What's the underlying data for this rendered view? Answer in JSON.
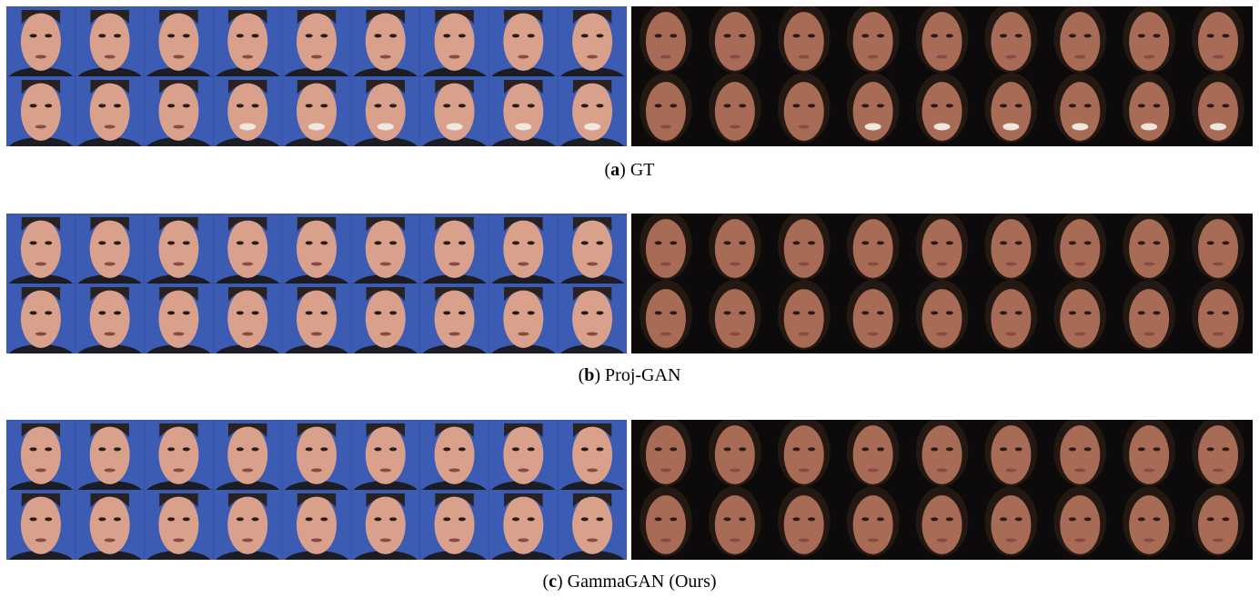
{
  "figure": {
    "panels": [
      {
        "caption": {
          "prefix": "(",
          "label": "a",
          "suffix": ") GT"
        }
      },
      {
        "caption": {
          "prefix": "(",
          "label": "b",
          "suffix": ") Proj-GAN"
        }
      },
      {
        "caption": {
          "prefix": "(",
          "label": "c",
          "suffix": ") GammaGAN (Ours)"
        }
      }
    ]
  }
}
